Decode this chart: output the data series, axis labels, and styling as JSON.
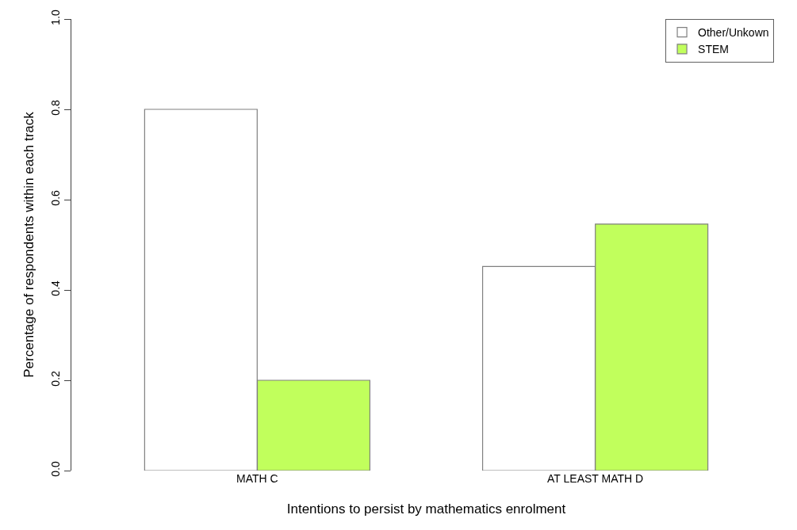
{
  "chart_data": {
    "type": "bar",
    "xlabel": "Intentions to persist by mathematics enrolment",
    "ylabel": "Percentage of respondents within each track",
    "categories": [
      "MATH C",
      "AT LEAST MATH D"
    ],
    "series": [
      {
        "name": "Other/Unkown",
        "color": "#ffffff",
        "values": [
          0.8,
          0.452
        ]
      },
      {
        "name": "STEM",
        "color": "#c1ff5c",
        "values": [
          0.2,
          0.546
        ]
      }
    ],
    "ylim": [
      0,
      1
    ],
    "yticks": [
      {
        "value": 0,
        "label": "0.0"
      },
      0.2,
      0.4,
      0.6,
      0.8,
      {
        "value": 1,
        "label": "1.0"
      }
    ],
    "legend": "top right"
  }
}
